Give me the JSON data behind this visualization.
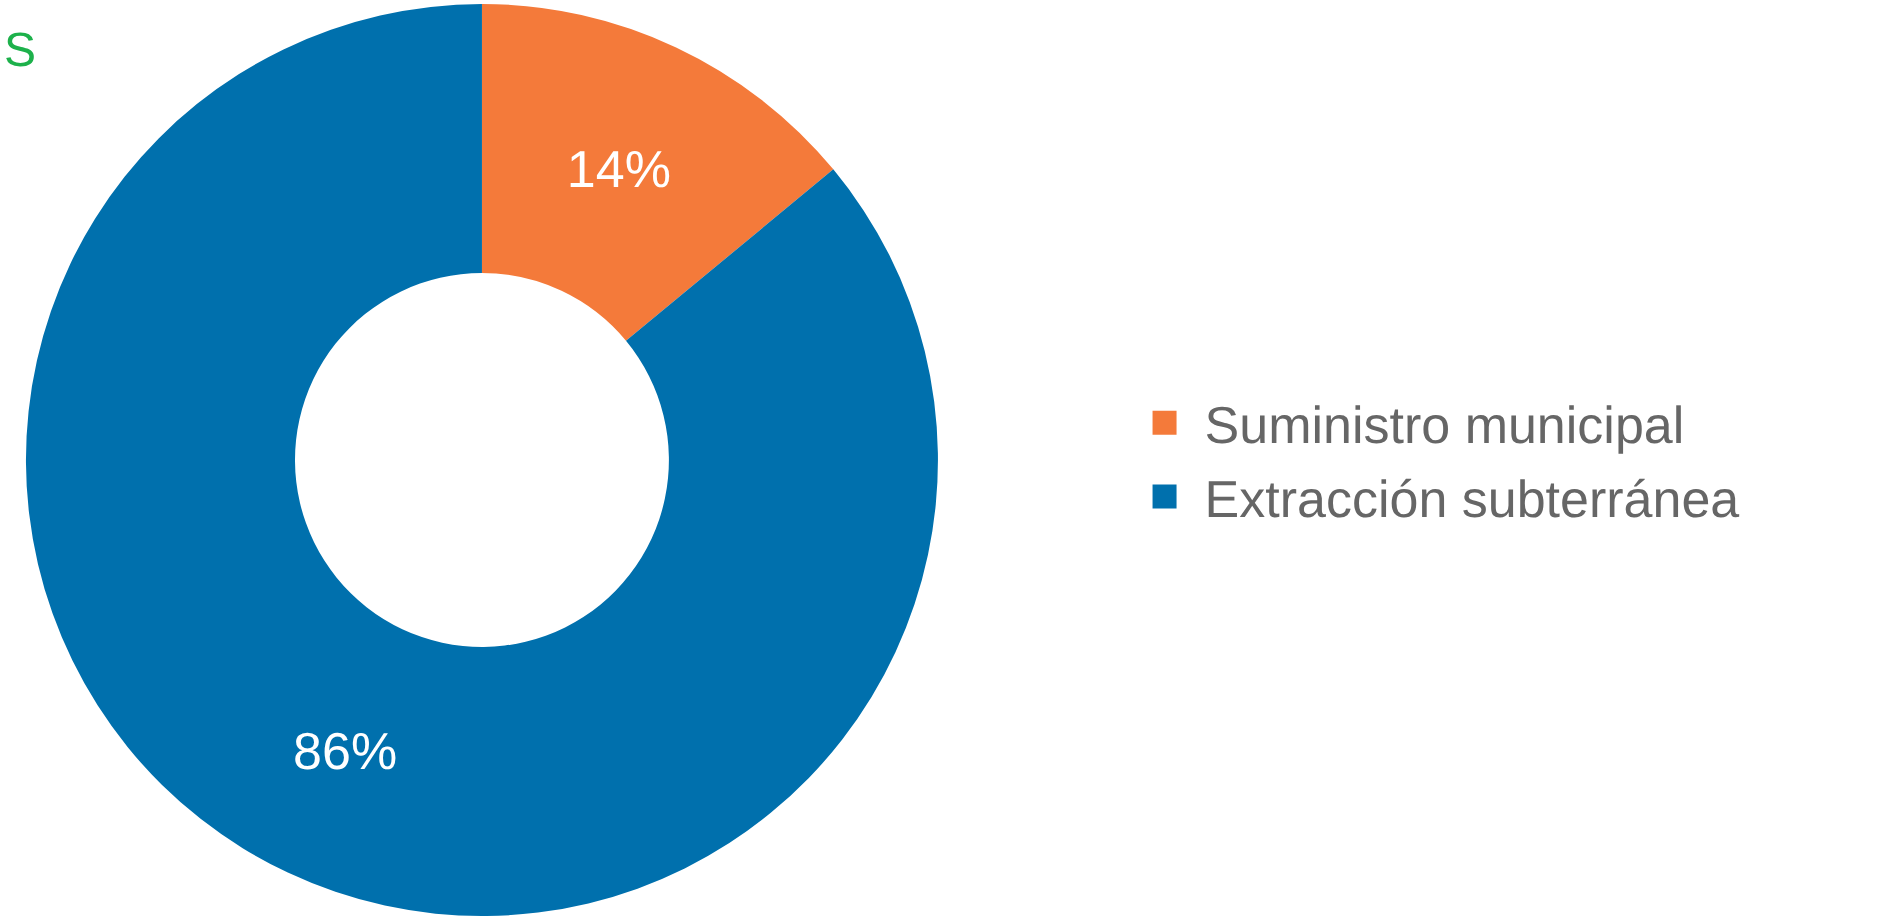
{
  "chart_data": {
    "type": "donut",
    "categories": [
      "Suministro municipal",
      "Extracción subterránea"
    ],
    "values": [
      14,
      86
    ],
    "colors": [
      "#f47a3a",
      "#0070ad"
    ],
    "value_labels": [
      "14%",
      "86%"
    ],
    "legend": "right",
    "annotations": [
      "S"
    ]
  }
}
